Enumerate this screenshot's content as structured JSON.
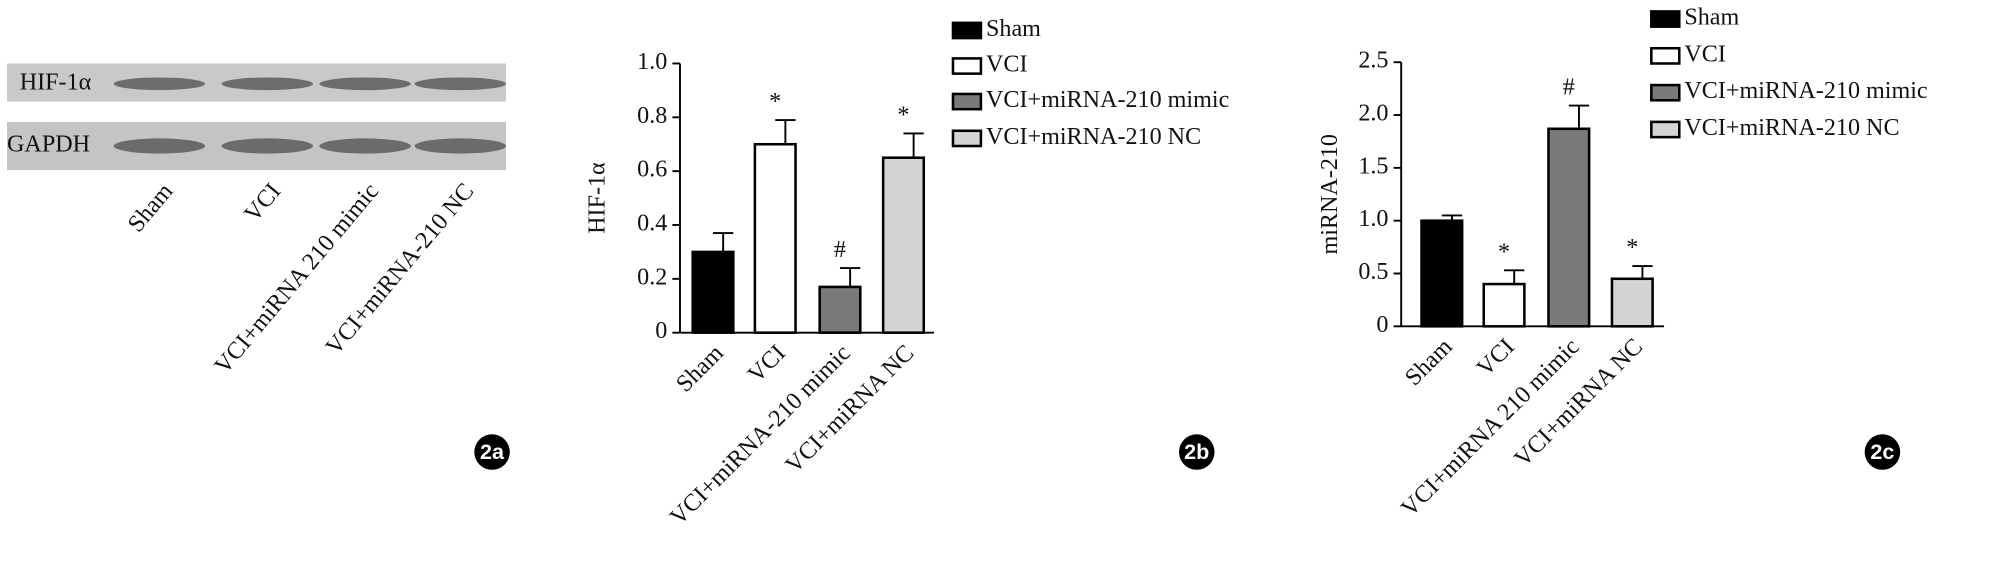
{
  "chart_data": [
    {
      "type": "blot",
      "panel": "2a",
      "rows": [
        "HIF-1α",
        "GAPDH"
      ],
      "categories": [
        "Sham",
        "VCI",
        "VCI+miRNA 210 mimic",
        "VCI+miRNA-210 NC"
      ]
    },
    {
      "type": "bar",
      "panel": "2b",
      "ylabel": "HIF-1α",
      "categories": [
        "Sham",
        "VCI",
        "VCI+miRNA-210 mimic",
        "VCI+miRNA NC"
      ],
      "values": [
        0.3,
        0.7,
        0.17,
        0.65
      ],
      "errors": [
        0.07,
        0.09,
        0.07,
        0.09
      ],
      "annotations": [
        null,
        "*",
        "#",
        "*"
      ],
      "colors": [
        "#000000",
        "#ffffff",
        "#7a7a7a",
        "#d4d4d4"
      ],
      "legend": [
        "Sham",
        "VCI",
        "VCI+miRNA-210 mimic",
        "VCI+miRNA-210 NC"
      ],
      "ylim": [
        0,
        1
      ],
      "yticks": [
        0,
        0.2,
        0.4,
        0.6,
        0.8,
        {
          "value": 1,
          "label": "1.0"
        }
      ]
    },
    {
      "type": "bar",
      "panel": "2c",
      "ylabel": "miRNA-210",
      "categories": [
        "Sham",
        "VCI",
        "VCI+miRNA 210 mimic",
        "VCI+miRNA NC"
      ],
      "values": [
        1.0,
        0.4,
        1.87,
        0.45
      ],
      "errors": [
        0.05,
        0.13,
        0.22,
        0.12
      ],
      "annotations": [
        null,
        "*",
        "#",
        "*"
      ],
      "colors": [
        "#000000",
        "#ffffff",
        "#7a7a7a",
        "#d4d4d4"
      ],
      "legend": [
        "Sham",
        "VCI",
        "VCI+miRNA-210 mimic",
        "VCI+miRNA-210 NC"
      ],
      "ylim": [
        0,
        2.5
      ],
      "yticks": [
        0,
        0.5,
        {
          "value": 1,
          "label": "1.0"
        },
        1.5,
        {
          "value": 2,
          "label": "2.0"
        },
        2.5
      ]
    }
  ]
}
